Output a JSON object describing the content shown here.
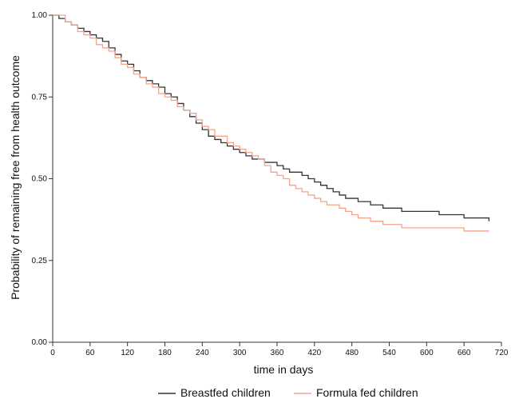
{
  "chart_data": {
    "type": "line",
    "title": "",
    "xlabel": "time in days",
    "ylabel": "Probability of remaining free from health outcome",
    "xlim": [
      0,
      720
    ],
    "ylim": [
      0,
      1
    ],
    "x_ticks": [
      0,
      60,
      120,
      180,
      240,
      300,
      360,
      420,
      480,
      540,
      600,
      660,
      720
    ],
    "y_ticks": [
      0.0,
      0.25,
      0.5,
      0.75,
      1.0
    ],
    "y_tick_labels": [
      "0.00",
      "0.25",
      "0.50",
      "0.75",
      "1.00"
    ],
    "grid": false,
    "legend_position": "bottom",
    "series": [
      {
        "name": "Breastfed children",
        "color": "#333333",
        "step": true,
        "x": [
          0,
          10,
          20,
          30,
          40,
          50,
          60,
          70,
          80,
          90,
          100,
          110,
          120,
          130,
          140,
          150,
          160,
          170,
          180,
          190,
          200,
          210,
          220,
          230,
          240,
          250,
          260,
          270,
          280,
          290,
          300,
          310,
          320,
          330,
          340,
          350,
          360,
          370,
          380,
          390,
          400,
          410,
          420,
          430,
          440,
          450,
          460,
          470,
          480,
          490,
          500,
          510,
          520,
          530,
          540,
          560,
          580,
          600,
          620,
          640,
          660,
          680,
          700
        ],
        "y": [
          1.0,
          0.99,
          0.98,
          0.97,
          0.96,
          0.95,
          0.94,
          0.93,
          0.92,
          0.9,
          0.88,
          0.86,
          0.85,
          0.83,
          0.81,
          0.8,
          0.79,
          0.78,
          0.76,
          0.75,
          0.73,
          0.71,
          0.69,
          0.67,
          0.65,
          0.63,
          0.62,
          0.61,
          0.6,
          0.59,
          0.58,
          0.57,
          0.56,
          0.56,
          0.55,
          0.55,
          0.54,
          0.53,
          0.52,
          0.52,
          0.51,
          0.5,
          0.49,
          0.48,
          0.47,
          0.46,
          0.45,
          0.44,
          0.44,
          0.43,
          0.43,
          0.42,
          0.42,
          0.41,
          0.41,
          0.4,
          0.4,
          0.4,
          0.39,
          0.39,
          0.38,
          0.38,
          0.37
        ]
      },
      {
        "name": "Formula fed children",
        "color": "#f4a48a",
        "step": true,
        "x": [
          0,
          10,
          20,
          30,
          40,
          50,
          60,
          70,
          80,
          90,
          100,
          110,
          120,
          130,
          140,
          150,
          160,
          170,
          180,
          190,
          200,
          210,
          220,
          230,
          240,
          250,
          260,
          270,
          280,
          290,
          300,
          310,
          320,
          330,
          340,
          350,
          360,
          370,
          380,
          390,
          400,
          410,
          420,
          430,
          440,
          450,
          460,
          470,
          480,
          490,
          500,
          510,
          520,
          530,
          540,
          560,
          580,
          600,
          620,
          640,
          660,
          680,
          700
        ],
        "y": [
          1.0,
          1.0,
          0.98,
          0.97,
          0.95,
          0.94,
          0.93,
          0.91,
          0.9,
          0.89,
          0.87,
          0.85,
          0.84,
          0.82,
          0.81,
          0.79,
          0.78,
          0.76,
          0.75,
          0.74,
          0.72,
          0.71,
          0.7,
          0.68,
          0.66,
          0.65,
          0.63,
          0.63,
          0.61,
          0.6,
          0.59,
          0.58,
          0.57,
          0.56,
          0.54,
          0.52,
          0.51,
          0.5,
          0.48,
          0.47,
          0.46,
          0.45,
          0.44,
          0.43,
          0.42,
          0.42,
          0.41,
          0.4,
          0.39,
          0.38,
          0.38,
          0.37,
          0.37,
          0.36,
          0.36,
          0.35,
          0.35,
          0.35,
          0.35,
          0.35,
          0.34,
          0.34,
          0.34
        ]
      }
    ]
  }
}
